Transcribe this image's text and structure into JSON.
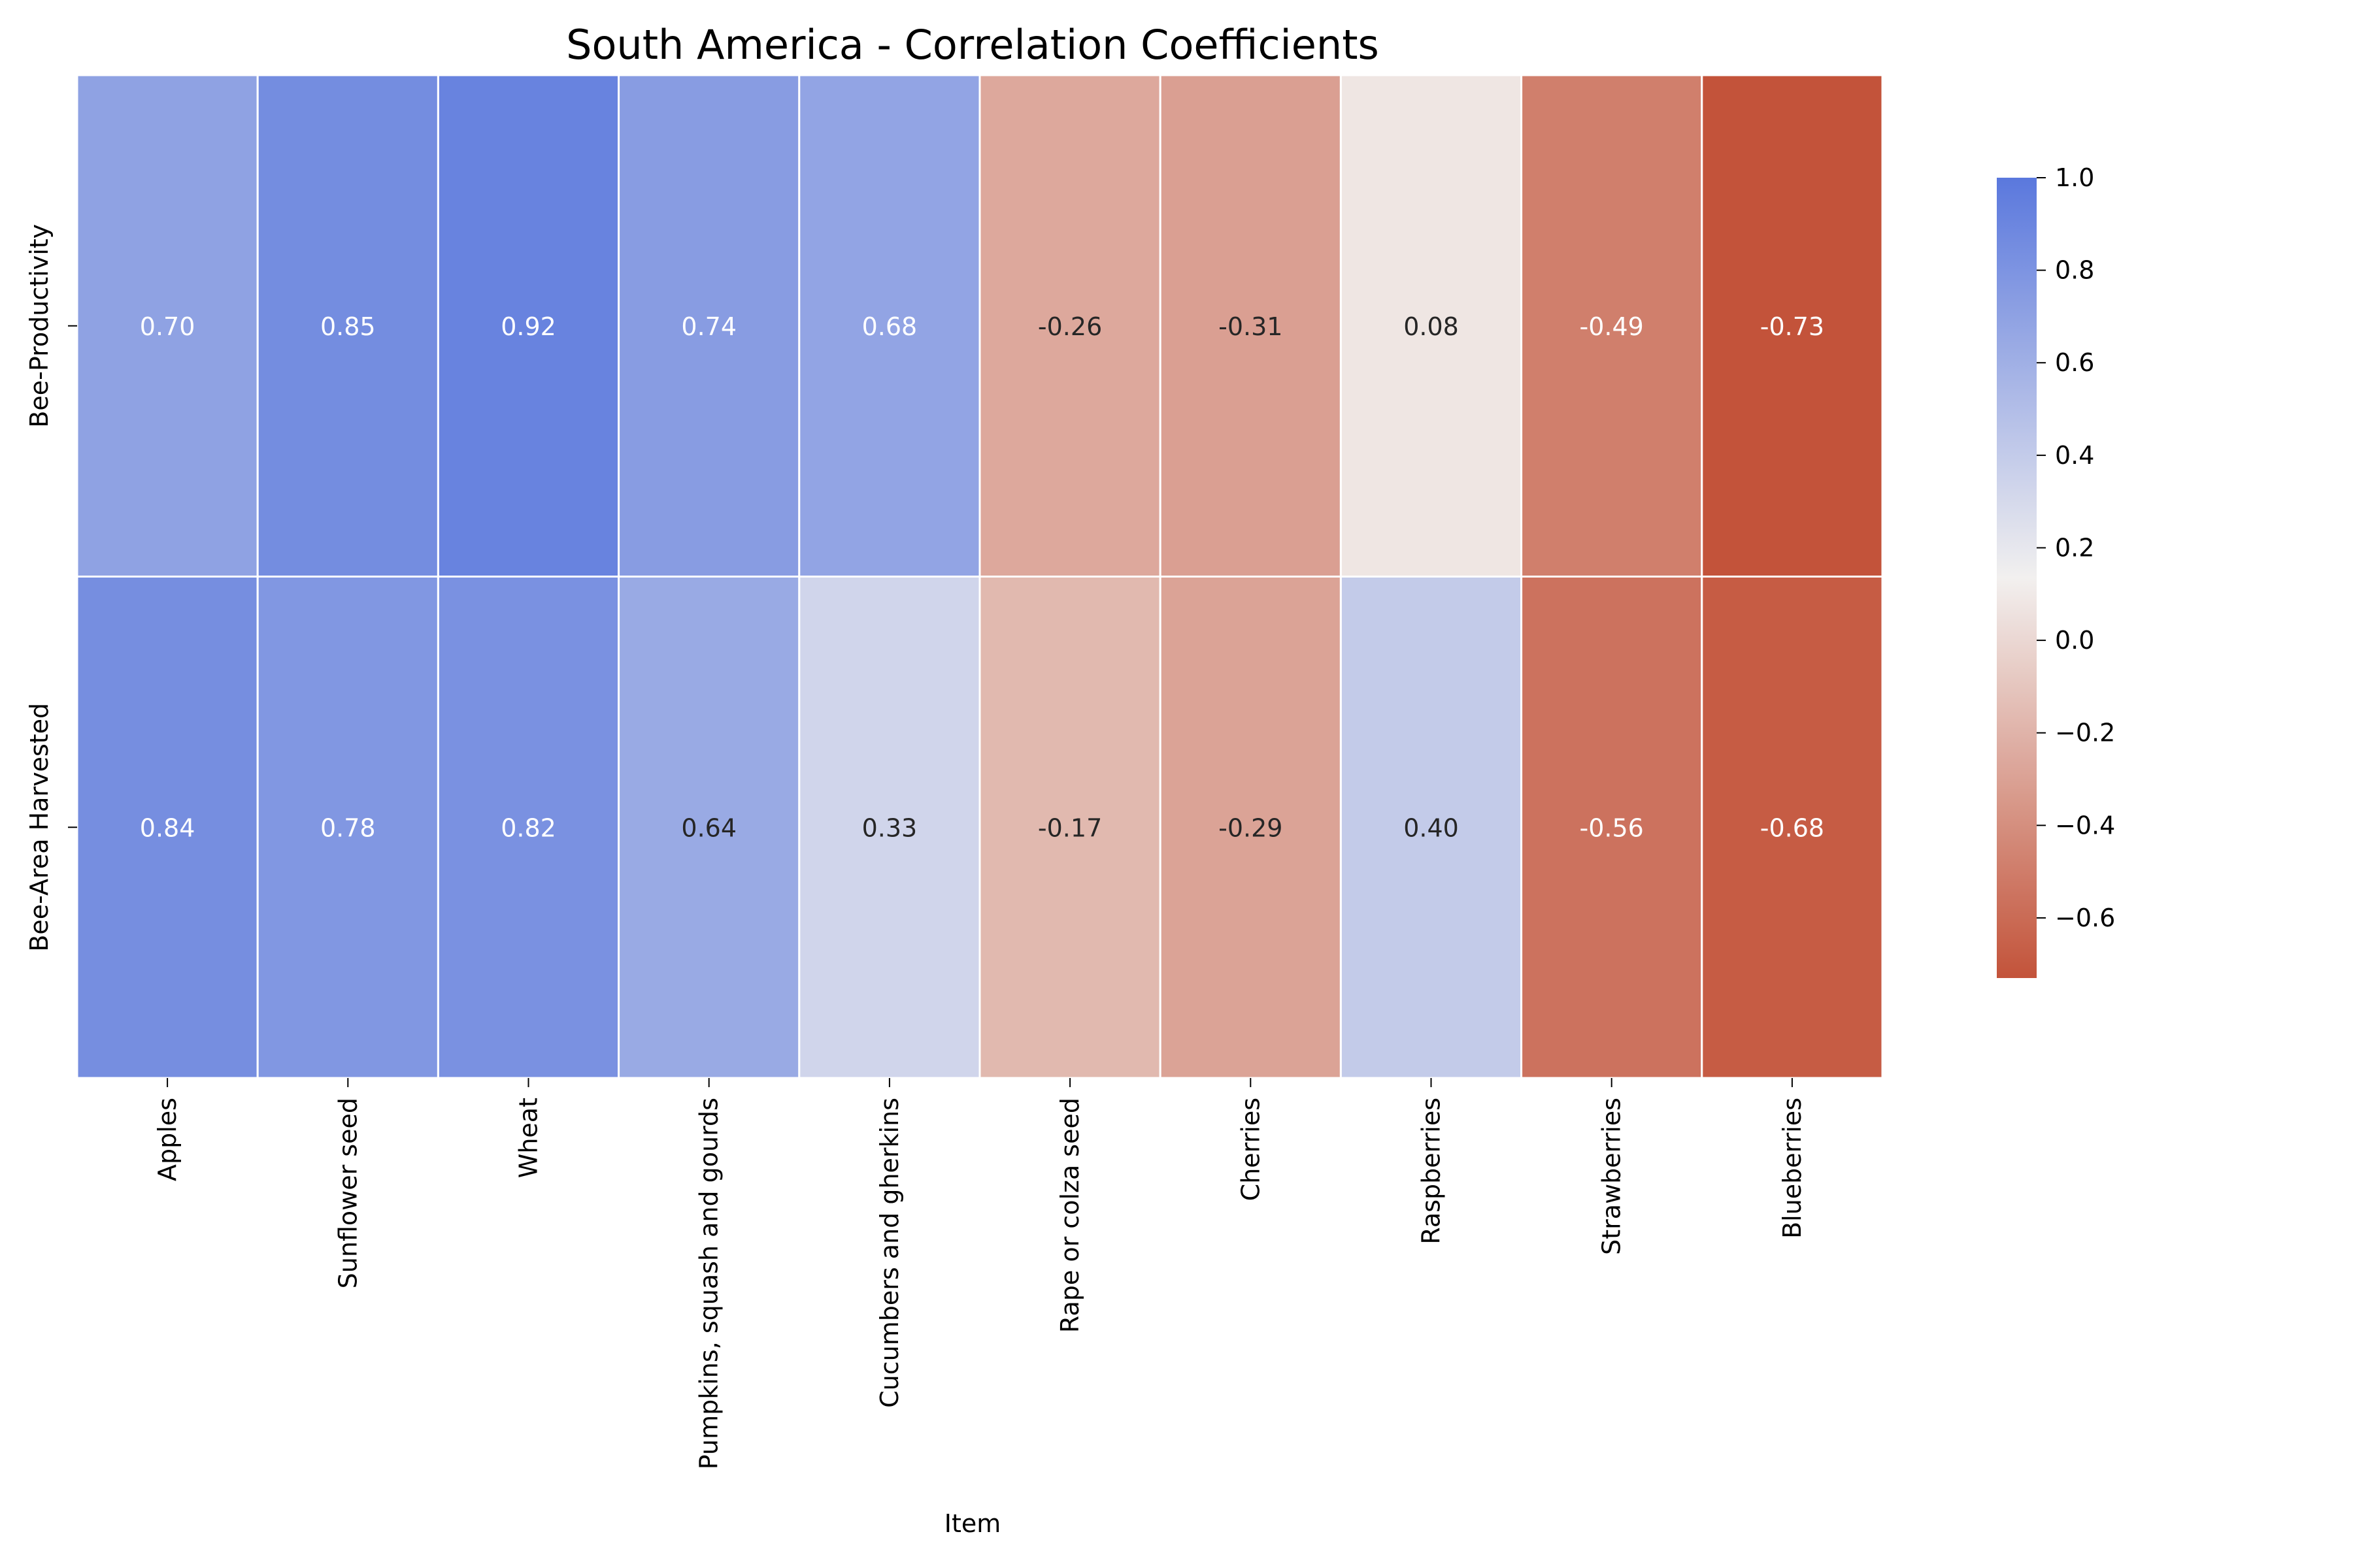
{
  "chart_data": {
    "type": "heatmap",
    "title": "South America - Correlation Coefficients",
    "xlabel": "Item",
    "ylabel": "",
    "x_categories": [
      "Apples",
      "Sunflower seed",
      "Wheat",
      "Pumpkins, squash and gourds",
      "Cucumbers and gherkins",
      "Rape or colza seed",
      "Cherries",
      "Raspberries",
      "Strawberries",
      "Blueberries"
    ],
    "y_categories": [
      "Bee-Productivity",
      "Bee-Area Harvested"
    ],
    "values": [
      [
        0.7,
        0.85,
        0.92,
        0.74,
        0.68,
        -0.26,
        -0.31,
        0.08,
        -0.49,
        -0.73
      ],
      [
        0.84,
        0.78,
        0.82,
        0.64,
        0.33,
        -0.17,
        -0.29,
        0.4,
        -0.56,
        -0.68
      ]
    ],
    "value_labels": [
      [
        "0.70",
        "0.85",
        "0.92",
        "0.74",
        "0.68",
        "-0.26",
        "-0.31",
        "0.08",
        "-0.49",
        "-0.73"
      ],
      [
        "0.84",
        "0.78",
        "0.82",
        "0.64",
        "0.33",
        "-0.17",
        "-0.29",
        "0.40",
        "-0.56",
        "-0.68"
      ]
    ],
    "colorbar": {
      "min": -0.73,
      "max": 1.0,
      "ticks": [
        1.0,
        0.8,
        0.6,
        0.4,
        0.2,
        0.0,
        -0.2,
        -0.4,
        -0.6
      ],
      "tick_labels": [
        "1.0",
        "0.8",
        "0.6",
        "0.4",
        "0.2",
        "0.0",
        "−0.2",
        "−0.4",
        "−0.6"
      ],
      "colors": {
        "low": "#c3533a",
        "mid": "#f2f0ef",
        "high": "#5a78dd"
      }
    }
  }
}
